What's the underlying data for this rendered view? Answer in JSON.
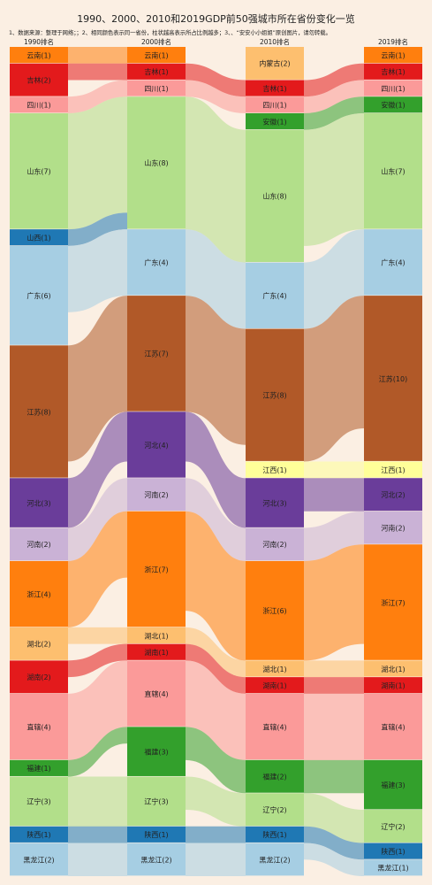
{
  "title": "1990、2000、2010和2019GDP前50强城市所在省份变化一览",
  "note": "1、数据来源：整理于网络；；2、相同颜色表示同一省份，柱状越高表示所占比例越多；3、、“安安小小姐姐”原创图片，请勿转载。",
  "chart_data": {
    "type": "sankey",
    "title": "1990、2000、2010和2019GDP前50强城市所在省份变化一览",
    "columns": [
      {
        "name": "1990排名",
        "nodes": [
          {
            "province": "云南",
            "count": 1
          },
          {
            "province": "吉林",
            "count": 2
          },
          {
            "province": "四川",
            "count": 1
          },
          {
            "province": "山东",
            "count": 7
          },
          {
            "province": "山西",
            "count": 1
          },
          {
            "province": "广东",
            "count": 6
          },
          {
            "province": "江苏",
            "count": 8
          },
          {
            "province": "河北",
            "count": 3
          },
          {
            "province": "河南",
            "count": 2
          },
          {
            "province": "浙江",
            "count": 4
          },
          {
            "province": "湖北",
            "count": 2
          },
          {
            "province": "湖南",
            "count": 2
          },
          {
            "province": "直辖",
            "count": 4
          },
          {
            "province": "福建",
            "count": 1
          },
          {
            "province": "辽宁",
            "count": 3
          },
          {
            "province": "陕西",
            "count": 1
          },
          {
            "province": "黑龙江",
            "count": 2
          }
        ]
      },
      {
        "name": "2000排名",
        "nodes": [
          {
            "province": "云南",
            "count": 1
          },
          {
            "province": "吉林",
            "count": 1
          },
          {
            "province": "四川",
            "count": 1
          },
          {
            "province": "山东",
            "count": 8
          },
          {
            "province": "广东",
            "count": 4
          },
          {
            "province": "江苏",
            "count": 7
          },
          {
            "province": "河北",
            "count": 4
          },
          {
            "province": "河南",
            "count": 2
          },
          {
            "province": "浙江",
            "count": 7
          },
          {
            "province": "湖北",
            "count": 1
          },
          {
            "province": "湖南",
            "count": 1
          },
          {
            "province": "直辖",
            "count": 4
          },
          {
            "province": "福建",
            "count": 3
          },
          {
            "province": "辽宁",
            "count": 3
          },
          {
            "province": "陕西",
            "count": 1
          },
          {
            "province": "黑龙江",
            "count": 2
          }
        ]
      },
      {
        "name": "2010排名",
        "nodes": [
          {
            "province": "内蒙古",
            "count": 2
          },
          {
            "province": "吉林",
            "count": 1
          },
          {
            "province": "四川",
            "count": 1
          },
          {
            "province": "安徽",
            "count": 1
          },
          {
            "province": "山东",
            "count": 8
          },
          {
            "province": "广东",
            "count": 4
          },
          {
            "province": "江苏",
            "count": 8
          },
          {
            "province": "江西",
            "count": 1
          },
          {
            "province": "河北",
            "count": 3
          },
          {
            "province": "河南",
            "count": 2
          },
          {
            "province": "浙江",
            "count": 6
          },
          {
            "province": "湖北",
            "count": 1
          },
          {
            "province": "湖南",
            "count": 1
          },
          {
            "province": "直辖",
            "count": 4
          },
          {
            "province": "福建",
            "count": 2
          },
          {
            "province": "辽宁",
            "count": 2
          },
          {
            "province": "陕西",
            "count": 1
          },
          {
            "province": "黑龙江",
            "count": 2
          }
        ]
      },
      {
        "name": "2019排名",
        "nodes": [
          {
            "province": "云南",
            "count": 1
          },
          {
            "province": "吉林",
            "count": 1
          },
          {
            "province": "四川",
            "count": 1
          },
          {
            "province": "安徽",
            "count": 1
          },
          {
            "province": "山东",
            "count": 7
          },
          {
            "province": "广东",
            "count": 4
          },
          {
            "province": "江苏",
            "count": 10
          },
          {
            "province": "江西",
            "count": 1
          },
          {
            "province": "河北",
            "count": 2
          },
          {
            "province": "河南",
            "count": 2
          },
          {
            "province": "浙江",
            "count": 7
          },
          {
            "province": "湖北",
            "count": 1
          },
          {
            "province": "湖南",
            "count": 1
          },
          {
            "province": "直辖",
            "count": 4
          },
          {
            "province": "福建",
            "count": 3
          },
          {
            "province": "辽宁",
            "count": 2
          },
          {
            "province": "陕西",
            "count": 1
          },
          {
            "province": "黑龙江",
            "count": 1
          }
        ]
      }
    ],
    "colors": {
      "云南": "#ff7f0e",
      "吉林": "#e31a1c",
      "四川": "#fb9a99",
      "山东": "#b2df8a",
      "山西": "#1f78b4",
      "广东": "#a6cee3",
      "江苏": "#b15928",
      "河北": "#6a3d9a",
      "河南": "#cab2d6",
      "浙江": "#ff7f0e",
      "湖北": "#fdbf6f",
      "湖南": "#e31a1c",
      "直辖": "#fb9a99",
      "福建": "#33a02c",
      "辽宁": "#b2df8a",
      "陕西": "#1f78b4",
      "黑龙江": "#a6cee3",
      "内蒙古": "#fdbf6f",
      "安徽": "#33a02c",
      "江西": "#ffff99"
    },
    "flows": [
      [
        "云南",
        "云南"
      ],
      [
        "吉林",
        "吉林"
      ],
      [
        "吉林",
        "内蒙古"
      ],
      [
        "四川",
        "四川"
      ],
      [
        "山东",
        "山东"
      ],
      [
        "山西",
        "山东"
      ],
      [
        "广东",
        "广东"
      ],
      [
        "江苏",
        "江苏"
      ],
      [
        "河北",
        "河北"
      ],
      [
        "河南",
        "河南"
      ],
      [
        "浙江",
        "浙江"
      ],
      [
        "湖北",
        "湖北"
      ],
      [
        "湖南",
        "湖南"
      ],
      [
        "直辖",
        "直辖"
      ],
      [
        "福建",
        "福建"
      ],
      [
        "辽宁",
        "辽宁"
      ],
      [
        "陕西",
        "陕西"
      ],
      [
        "黑龙江",
        "黑龙江"
      ]
    ]
  }
}
